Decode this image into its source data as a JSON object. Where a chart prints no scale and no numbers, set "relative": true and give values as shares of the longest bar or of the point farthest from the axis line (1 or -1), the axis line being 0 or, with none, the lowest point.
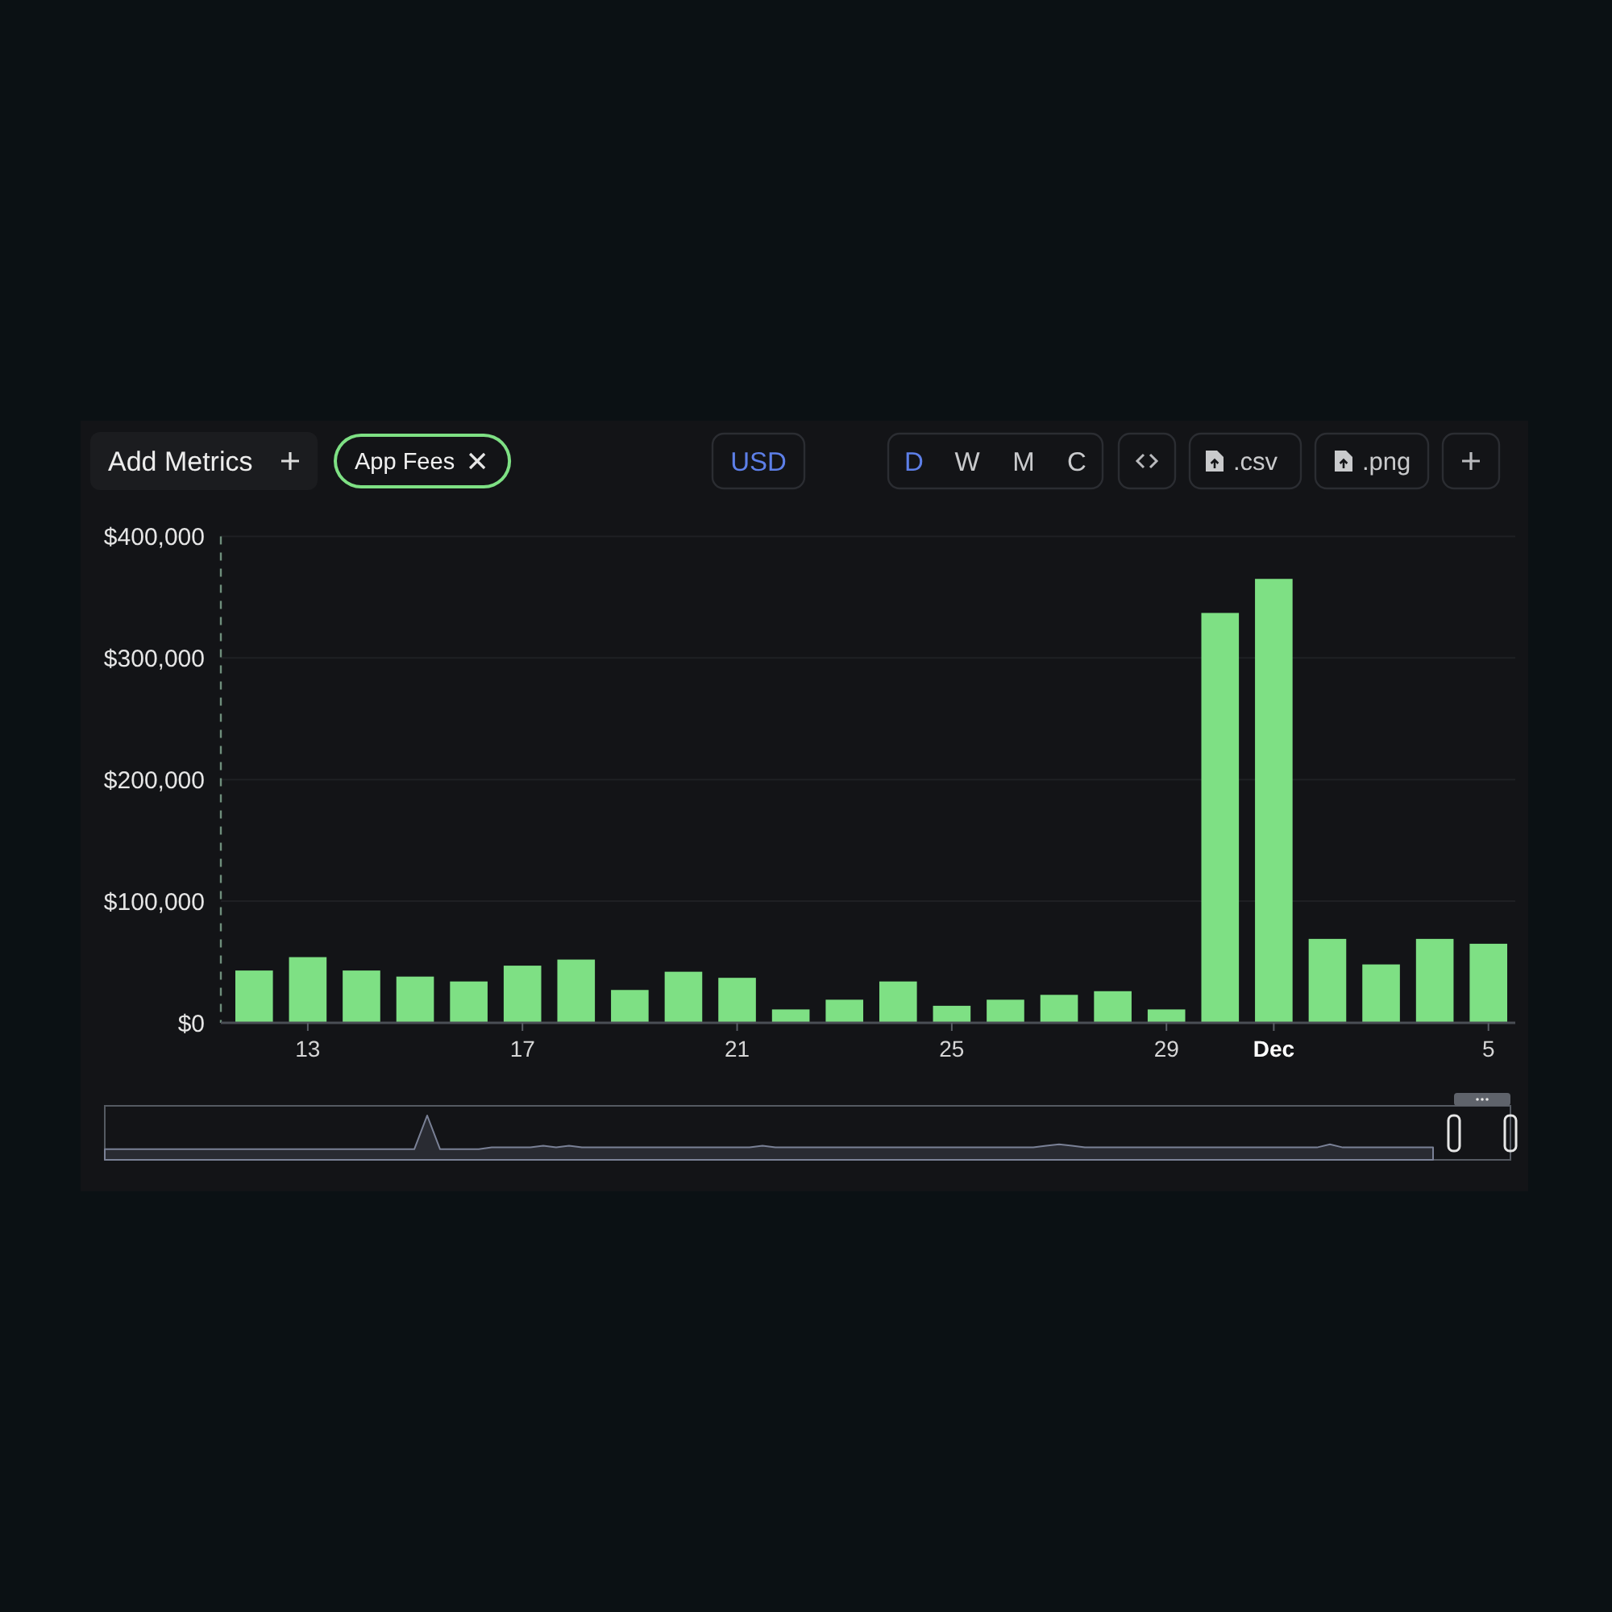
{
  "chart_data": [
    {
      "type": "bar",
      "categories": [
        null,
        "13",
        null,
        null,
        null,
        "17",
        null,
        null,
        null,
        "21",
        null,
        null,
        null,
        "25",
        null,
        null,
        null,
        "29",
        null,
        "Dec",
        null,
        null,
        null,
        "5"
      ],
      "series": [
        {
          "name": "App Fees",
          "color": "#7ee084",
          "values": [
            43000,
            54000,
            43000,
            38000,
            34000,
            47000,
            52000,
            27000,
            42000,
            37000,
            11000,
            19000,
            34000,
            14000,
            19000,
            23000,
            26000,
            11000,
            337000,
            365000,
            69000,
            48000,
            69000,
            65000
          ]
        }
      ],
      "ylim": [
        0,
        400000
      ],
      "yticks": [
        {
          "value": 0,
          "label": "$0"
        },
        {
          "value": 100000,
          "label": "$100,000"
        },
        {
          "value": 200000,
          "label": "$200,000"
        },
        {
          "value": 300000,
          "label": "$300,000"
        },
        {
          "value": 400000,
          "label": "$400,000"
        }
      ],
      "grid": "y",
      "legend": "top left",
      "annotations": [
        "Add Metrics",
        "USD",
        "D",
        "W",
        "M",
        "C",
        ".csv",
        ".png"
      ]
    },
    {
      "type": "area",
      "relative": true,
      "categories": [
        null,
        null,
        null,
        null,
        null,
        null,
        null,
        null,
        null,
        null,
        null,
        null,
        null,
        null,
        null,
        null,
        null,
        null,
        null,
        null,
        null,
        null,
        null,
        null,
        null,
        null,
        null,
        null,
        null,
        null,
        null,
        null,
        null,
        null,
        null,
        null,
        null,
        null,
        null,
        null,
        null,
        null,
        null,
        null,
        null,
        null,
        null,
        null,
        null,
        null,
        null,
        null,
        null,
        null,
        null,
        null,
        null,
        null,
        null,
        null,
        null,
        null,
        null,
        null,
        null,
        null,
        null,
        null,
        null,
        null,
        null,
        null,
        null,
        null,
        null,
        null,
        null,
        null,
        null,
        null,
        null,
        null,
        null,
        null,
        null,
        null,
        null,
        null,
        null,
        null,
        null,
        null,
        null,
        null,
        null,
        null,
        null,
        null,
        null,
        null,
        null,
        null,
        null,
        null,
        null,
        null,
        null,
        null,
        null,
        null
      ],
      "series": [
        {
          "color": "#7a8196",
          "values": [
            0.24,
            0.24,
            0.24,
            0.24,
            0.24,
            0.24,
            0.24,
            0.24,
            0.24,
            0.24,
            0.24,
            0.24,
            0.24,
            0.24,
            0.24,
            0.24,
            0.24,
            0.24,
            0.24,
            0.24,
            0.24,
            0.24,
            0.24,
            0.24,
            0.24,
            1,
            0.24,
            0.24,
            0.24,
            0.24,
            0.28,
            0.28,
            0.28,
            0.28,
            0.32,
            0.28,
            0.32,
            0.28,
            0.28,
            0.28,
            0.28,
            0.28,
            0.28,
            0.28,
            0.28,
            0.28,
            0.28,
            0.28,
            0.28,
            0.28,
            0.28,
            0.32,
            0.28,
            0.28,
            0.28,
            0.28,
            0.28,
            0.28,
            0.28,
            0.28,
            0.28,
            0.28,
            0.28,
            0.28,
            0.28,
            0.28,
            0.28,
            0.28,
            0.28,
            0.28,
            0.28,
            0.28,
            0.28,
            0.32,
            0.35,
            0.32,
            0.28,
            0.28,
            0.28,
            0.28,
            0.28,
            0.28,
            0.28,
            0.28,
            0.28,
            0.28,
            0.28,
            0.28,
            0.28,
            0.28,
            0.28,
            0.28,
            0.28,
            0.28,
            0.28,
            0.35,
            0.28,
            0.28,
            0.28,
            0.28,
            0.28,
            0.28,
            0.28,
            0.28,
            null,
            null,
            null,
            null,
            null,
            null
          ]
        }
      ]
    }
  ]
}
